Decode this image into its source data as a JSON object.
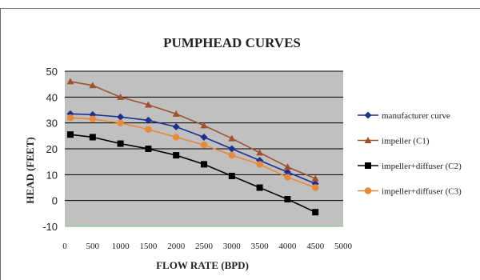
{
  "chart_data": {
    "type": "line",
    "title": "PUMPHEAD CURVES",
    "xlabel": "FLOW RATE (BPD)",
    "ylabel": "HEAD (FEET)",
    "xlim": [
      0,
      5000
    ],
    "ylim": [
      -10,
      50
    ],
    "xticks": [
      "0",
      "500",
      "1000",
      "1500",
      "2000",
      "2500",
      "3000",
      "3500",
      "4000",
      "4500",
      "5000"
    ],
    "yticks": [
      "-10",
      "0",
      "10",
      "20",
      "30",
      "40",
      "50"
    ],
    "grid": "horizontal",
    "legend_position": "right",
    "plot_background": "#c0c0c0",
    "x": [
      100,
      500,
      1000,
      1500,
      2000,
      2500,
      3000,
      3500,
      4000,
      4500
    ],
    "series": [
      {
        "name": "manufacturer curve",
        "color": "#1f2f8f",
        "marker": "diamond",
        "values": [
          33.5,
          33.2,
          32.3,
          31,
          28.5,
          24.5,
          20,
          15.5,
          11,
          6.5
        ]
      },
      {
        "name": "impeller (C1)",
        "color": "#a0522d",
        "marker": "triangle",
        "values": [
          46,
          44.5,
          40,
          37,
          33.5,
          29,
          24,
          18.5,
          13,
          8.5
        ]
      },
      {
        "name": "impeller+diffuser (C2)",
        "color": "#000000",
        "marker": "square",
        "values": [
          25.5,
          24.5,
          22,
          20,
          17.5,
          14,
          9.5,
          5,
          0.5,
          -4.5
        ]
      },
      {
        "name": "impeller+diffuser (C3)",
        "color": "#e8893a",
        "marker": "circle",
        "values": [
          32,
          31.5,
          30,
          27.5,
          24.5,
          21.5,
          17.5,
          14,
          9,
          5
        ]
      }
    ]
  }
}
